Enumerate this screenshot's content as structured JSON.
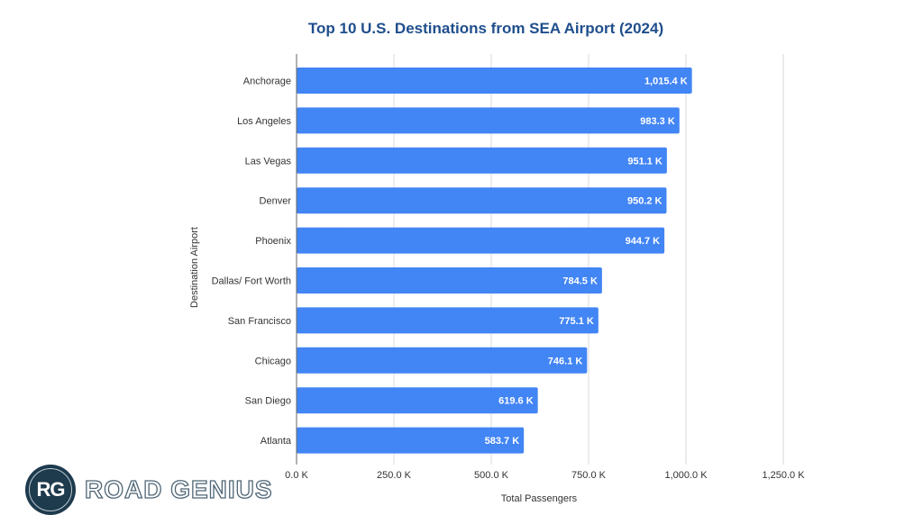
{
  "chart_data": {
    "type": "bar",
    "orientation": "horizontal",
    "title": "Top 10 U.S. Destinations from SEA Airport (2024)",
    "xlabel": "Total Passengers",
    "ylabel": "Destination Airport",
    "categories": [
      "Anchorage",
      "Los Angeles",
      "Las Vegas",
      "Denver",
      "Phoenix",
      "Dallas/ Fort Worth",
      "San Francisco",
      "Chicago",
      "San Diego",
      "Atlanta"
    ],
    "values": [
      1015.4,
      983.3,
      951.1,
      950.2,
      944.7,
      784.5,
      775.1,
      746.1,
      619.6,
      583.7
    ],
    "value_labels": [
      "1,015.4 K",
      "983.3 K",
      "951.1 K",
      "950.2 K",
      "944.7 K",
      "784.5 K",
      "775.1 K",
      "746.1 K",
      "619.6 K",
      "583.7 K"
    ],
    "units": "thousands of passengers",
    "xlim": [
      0,
      1250
    ],
    "xticks": [
      0,
      250,
      500,
      750,
      1000,
      1250
    ],
    "xtick_labels": [
      "0.0 K",
      "250.0 K",
      "500.0 K",
      "750.0 K",
      "1,000.0 K",
      "1,250.0 K"
    ],
    "grid": true,
    "legend": "none",
    "colors": {
      "bar": "#4285f4",
      "title": "#1f4e8c",
      "grid": "#d9d9d9",
      "axis": "#666666"
    }
  },
  "branding": {
    "logo_initials": "RG",
    "logo_text": "ROAD GENIUS"
  }
}
